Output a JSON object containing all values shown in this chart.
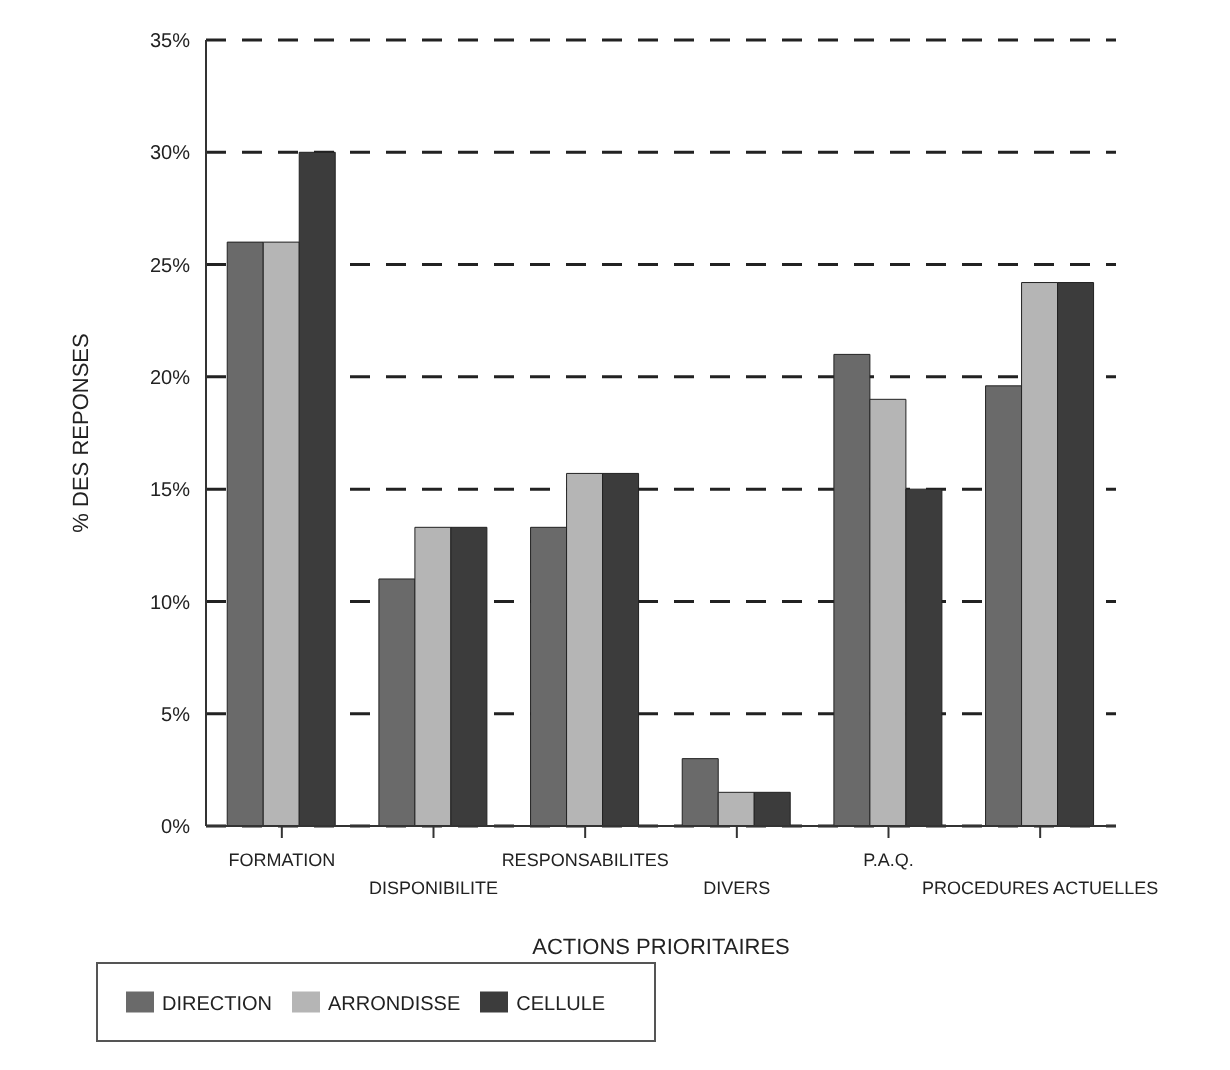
{
  "chart_data": {
    "type": "bar",
    "xlabel": "ACTIONS PRIORITAIRES",
    "ylabel": "% DES REPONSES",
    "categories": [
      "FORMATION",
      "DISPONIBILITE",
      "RESPONSABILITES",
      "DIVERS",
      "P.A.Q.",
      "PROCEDURES ACTUELLES"
    ],
    "series": [
      {
        "name": "DIRECTION",
        "color": "#6a6a6a",
        "values": [
          26,
          11,
          13.3,
          3,
          21,
          19.6
        ]
      },
      {
        "name": "ARRONDISSE",
        "color": "#b5b5b5",
        "values": [
          26,
          13.3,
          15.7,
          1.5,
          19,
          24.2
        ]
      },
      {
        "name": "CELLULE",
        "color": "#3c3c3c",
        "values": [
          30,
          13.3,
          15.7,
          1.5,
          15,
          24.2
        ]
      }
    ],
    "ylim": [
      0,
      35
    ],
    "yticks": [
      {
        "value": 0,
        "label": "0%"
      },
      {
        "value": 5,
        "label": "5%"
      },
      {
        "value": 10,
        "label": "10%"
      },
      {
        "value": 15,
        "label": "15%"
      },
      {
        "value": 20,
        "label": "20%"
      },
      {
        "value": 25,
        "label": "25%"
      },
      {
        "value": 30,
        "label": "30%"
      },
      {
        "value": 35,
        "label": "35%"
      }
    ],
    "grid": "y",
    "legend": "bottom left"
  }
}
